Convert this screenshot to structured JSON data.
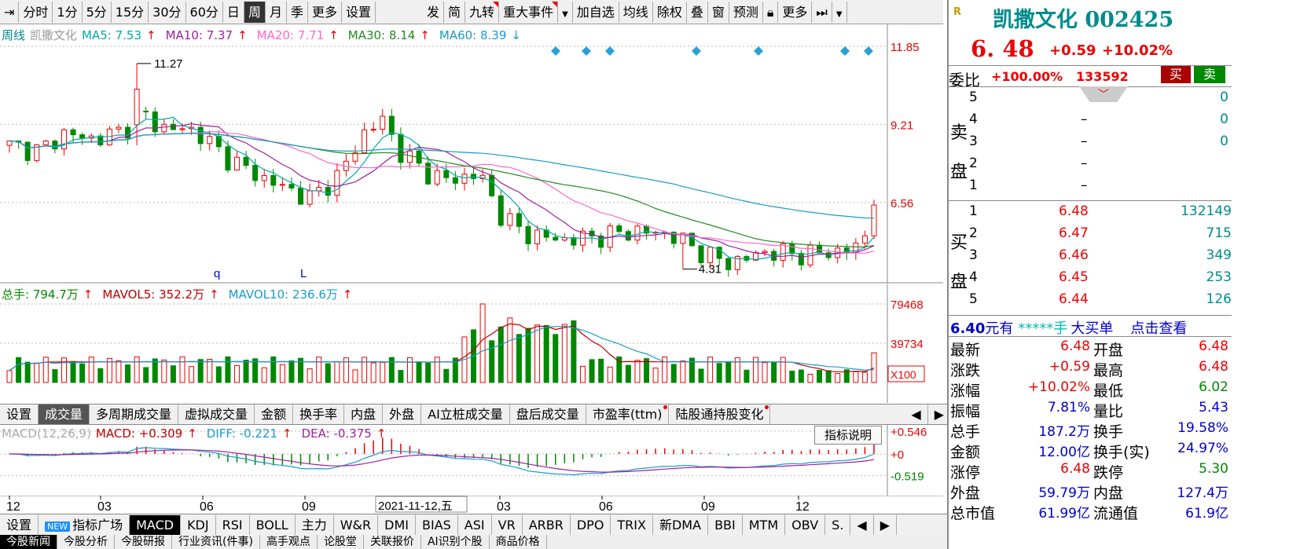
{
  "toolbar": {
    "items": [
      {
        "label": "分时"
      },
      {
        "label": "1分"
      },
      {
        "label": "5分"
      },
      {
        "label": "15分"
      },
      {
        "label": "30分"
      },
      {
        "label": "60分"
      },
      {
        "label": "日"
      },
      {
        "label": "周"
      },
      {
        "label": "月"
      },
      {
        "label": "季"
      },
      {
        "label": "更多"
      },
      {
        "label": "设置"
      }
    ],
    "right_items": [
      {
        "label": "发"
      },
      {
        "label": "简"
      },
      {
        "label": "九转"
      },
      {
        "label": "重大事件"
      },
      {
        "label": "加自选"
      },
      {
        "label": "均线"
      },
      {
        "label": "除权"
      },
      {
        "label": "叠"
      },
      {
        "label": "窗"
      },
      {
        "label": "预测"
      },
      {
        "label": "更多"
      }
    ]
  },
  "legend_main": {
    "period": "周线",
    "name": "凯撒文化",
    "ma5": "MA5: 7.53",
    "ma10": "MA10: 7.37",
    "ma20": "MA20: 7.71",
    "ma30": "MA30: 8.14",
    "ma60": "MA60: 8.39"
  },
  "legend_vol": {
    "total": "总手: 794.7万",
    "mavol5": "MAVOL5: 352.2万",
    "mavol10": "MAVOL10: 236.6万"
  },
  "legend_macd": {
    "name": "MACD(12,26,9)",
    "macd": "MACD: +0.309",
    "diff": "DIFF: -0.221",
    "dea": "DEA: -0.375"
  },
  "explain_button": "指标说明",
  "chart_data": {
    "type": "candlestick",
    "y_labels": [
      "11.85",
      "9.21",
      "6.56"
    ],
    "high_mark": "11.27",
    "low_mark": "4.31",
    "markers": [
      "q",
      "L"
    ],
    "vol_labels": [
      "79468",
      "39734"
    ],
    "vol_unit": "X100",
    "macd_labels": [
      "+0.546",
      "+0",
      "-0.519"
    ],
    "x_labels": [
      "12",
      "03",
      "06",
      "09",
      "03",
      "06",
      "09",
      "12"
    ],
    "cursor_date": "2021-11-12,五"
  },
  "tabs1": [
    {
      "label": "设置"
    },
    {
      "label": "成交量"
    },
    {
      "label": "多周期成交量"
    },
    {
      "label": "虚拟成交量"
    },
    {
      "label": "金额"
    },
    {
      "label": "换手率"
    },
    {
      "label": "内盘"
    },
    {
      "label": "外盘"
    },
    {
      "label": "AI立桩成交量"
    },
    {
      "label": "盘后成交量"
    },
    {
      "label": "市盈率(ttm)"
    },
    {
      "label": "陆股通持股变化"
    }
  ],
  "tabs2": [
    {
      "label": "设置"
    },
    {
      "label": "指标广场"
    },
    {
      "label": "MACD"
    },
    {
      "label": "KDJ"
    },
    {
      "label": "RSI"
    },
    {
      "label": "BOLL"
    },
    {
      "label": "主力"
    },
    {
      "label": "W&R"
    },
    {
      "label": "DMI"
    },
    {
      "label": "BIAS"
    },
    {
      "label": "ASI"
    },
    {
      "label": "VR"
    },
    {
      "label": "ARBR"
    },
    {
      "label": "DPO"
    },
    {
      "label": "TRIX"
    },
    {
      "label": "新DMA"
    },
    {
      "label": "BBI"
    },
    {
      "label": "MTM"
    },
    {
      "label": "OBV"
    },
    {
      "label": "S."
    }
  ],
  "new_badge": "NEW",
  "tabs3": [
    {
      "label": "今股新闻"
    },
    {
      "label": "今股分析"
    },
    {
      "label": "今股研报"
    },
    {
      "label": "行业资讯(件事)"
    },
    {
      "label": "高手观点"
    },
    {
      "label": "论股堂"
    },
    {
      "label": "关联报价"
    },
    {
      "label": "AI识别个股"
    },
    {
      "label": "商品价格"
    }
  ],
  "quote": {
    "flag": "R",
    "title": "凯撒文化 002425",
    "price": "6. 48",
    "change": "+0.59",
    "pct": "+10.02%",
    "weibi_label": "委比",
    "weibi": "+100.00%",
    "weicha": "133592",
    "buy_btn": "买",
    "sell_btn": "卖",
    "sell_label": "卖盘",
    "buy_label": "买盘",
    "sell_levels": [
      {
        "n": "5",
        "price": "",
        "vol": "0"
      },
      {
        "n": "4",
        "price": "–",
        "vol": "0"
      },
      {
        "n": "3",
        "price": "–",
        "vol": "0"
      },
      {
        "n": "2",
        "price": "–",
        "vol": ""
      },
      {
        "n": "1",
        "price": "–",
        "vol": ""
      }
    ],
    "buy_levels": [
      {
        "n": "1",
        "price": "6.48",
        "vol": "132149"
      },
      {
        "n": "2",
        "price": "6.47",
        "vol": "715"
      },
      {
        "n": "3",
        "price": "6.46",
        "vol": "349"
      },
      {
        "n": "4",
        "price": "6.45",
        "vol": "253"
      },
      {
        "n": "5",
        "price": "6.44",
        "vol": "126"
      }
    ],
    "bigorder_price": "6.40",
    "bigorder_unit": "元有",
    "bigorder_mask": "*****手",
    "bigorder_label": "大买单",
    "bigorder_link": "点击查看",
    "stats": [
      {
        "l1": "最新",
        "v1": "6.48",
        "l2": "开盘",
        "v2": "6.48"
      },
      {
        "l1": "涨跌",
        "v1": "+0.59",
        "l2": "最高",
        "v2": "6.48"
      },
      {
        "l1": "涨幅",
        "v1": "+10.02%",
        "l2": "最低",
        "v2": "6.02"
      },
      {
        "l1": "振幅",
        "v1": "7.81%",
        "l2": "量比",
        "v2": "5.43"
      },
      {
        "l1": "总手",
        "v1": "187.2万",
        "l2": "换手",
        "v2": "19.58%"
      },
      {
        "l1": "金额",
        "v1": "12.00亿",
        "l2": "换手(实)",
        "v2": "24.97%"
      },
      {
        "l1": "涨停",
        "v1": "6.48",
        "l2": "跌停",
        "v2": "5.30"
      },
      {
        "l1": "外盘",
        "v1": "59.79万",
        "l2": "内盘",
        "v2": "127.4万"
      },
      {
        "l1": "总市值",
        "v1": "61.99亿",
        "l2": "流通值",
        "v2": "61.9亿"
      }
    ]
  }
}
